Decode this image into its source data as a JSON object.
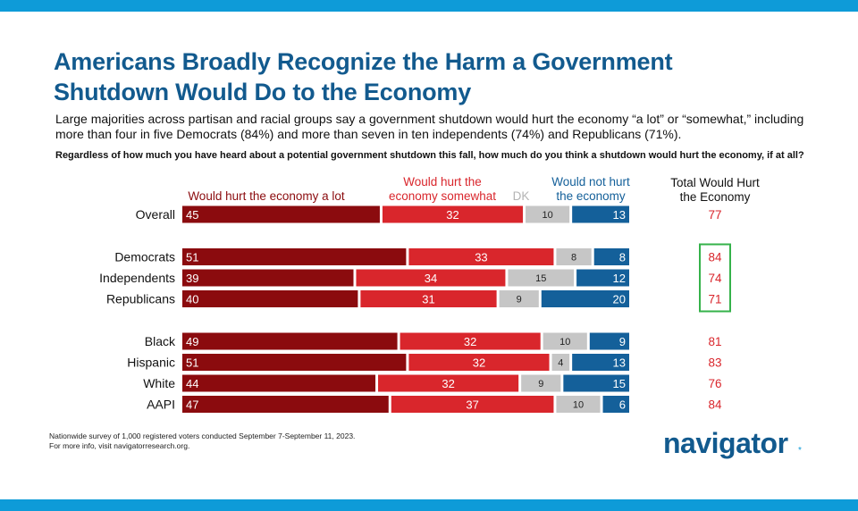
{
  "title": "Americans Broadly Recognize the Harm a Government Shutdown Would Do to the Economy",
  "subtitle": "Large majorities across partisan and racial groups say a government shutdown would hurt the economy “a lot” or “somewhat,” including more than four in five Democrats (84%) and more than seven in ten independents (74%) and Republicans (71%).",
  "question": "Regardless of how much you have heard about a potential government shutdown this fall, how much do you think a shutdown would hurt the economy, if at all?",
  "footnote_line1": "Nationwide survey of 1,000 registered voters conducted September 7-September 11, 2023.",
  "footnote_line2": "For more info, visit navigatorresearch.org.",
  "logo_text": "navigator",
  "logo_mark": "*",
  "colors": {
    "a_lot": "#8b0b0e",
    "somewhat": "#d9262c",
    "dk": "#c6c6c6",
    "not_hurt": "#14609a",
    "total_text": "#d9262c",
    "highlight_box": "#35b24a",
    "band": "#0e9bd8"
  },
  "chart_data": {
    "type": "stacked-bar-horizontal",
    "legend": [
      {
        "key": "a_lot",
        "label_lines": [
          "Would hurt the economy a lot"
        ]
      },
      {
        "key": "somewhat",
        "label_lines": [
          "Would hurt the",
          "economy somewhat"
        ]
      },
      {
        "key": "dk",
        "label_lines": [
          "DK"
        ]
      },
      {
        "key": "not_hurt",
        "label_lines": [
          "Would not hurt",
          "the economy"
        ]
      }
    ],
    "total_header_lines": [
      "Total Would Hurt",
      "the Economy"
    ],
    "groups": [
      {
        "rows": [
          {
            "label": "Overall",
            "a_lot": 45,
            "somewhat": 32,
            "dk": 10,
            "not_hurt": 13,
            "total": 77
          }
        ]
      },
      {
        "highlight_total": true,
        "rows": [
          {
            "label": "Democrats",
            "a_lot": 51,
            "somewhat": 33,
            "dk": 8,
            "not_hurt": 8,
            "total": 84
          },
          {
            "label": "Independents",
            "a_lot": 39,
            "somewhat": 34,
            "dk": 15,
            "not_hurt": 12,
            "total": 74
          },
          {
            "label": "Republicans",
            "a_lot": 40,
            "somewhat": 31,
            "dk": 9,
            "not_hurt": 20,
            "total": 71
          }
        ]
      },
      {
        "rows": [
          {
            "label": "Black",
            "a_lot": 49,
            "somewhat": 32,
            "dk": 10,
            "not_hurt": 9,
            "total": 81
          },
          {
            "label": "Hispanic",
            "a_lot": 51,
            "somewhat": 32,
            "dk": 4,
            "not_hurt": 13,
            "total": 83
          },
          {
            "label": "White",
            "a_lot": 44,
            "somewhat": 32,
            "dk": 9,
            "not_hurt": 15,
            "total": 76
          },
          {
            "label": "AAPI",
            "a_lot": 47,
            "somewhat": 37,
            "dk": 10,
            "not_hurt": 6,
            "total": 84
          }
        ]
      }
    ]
  }
}
